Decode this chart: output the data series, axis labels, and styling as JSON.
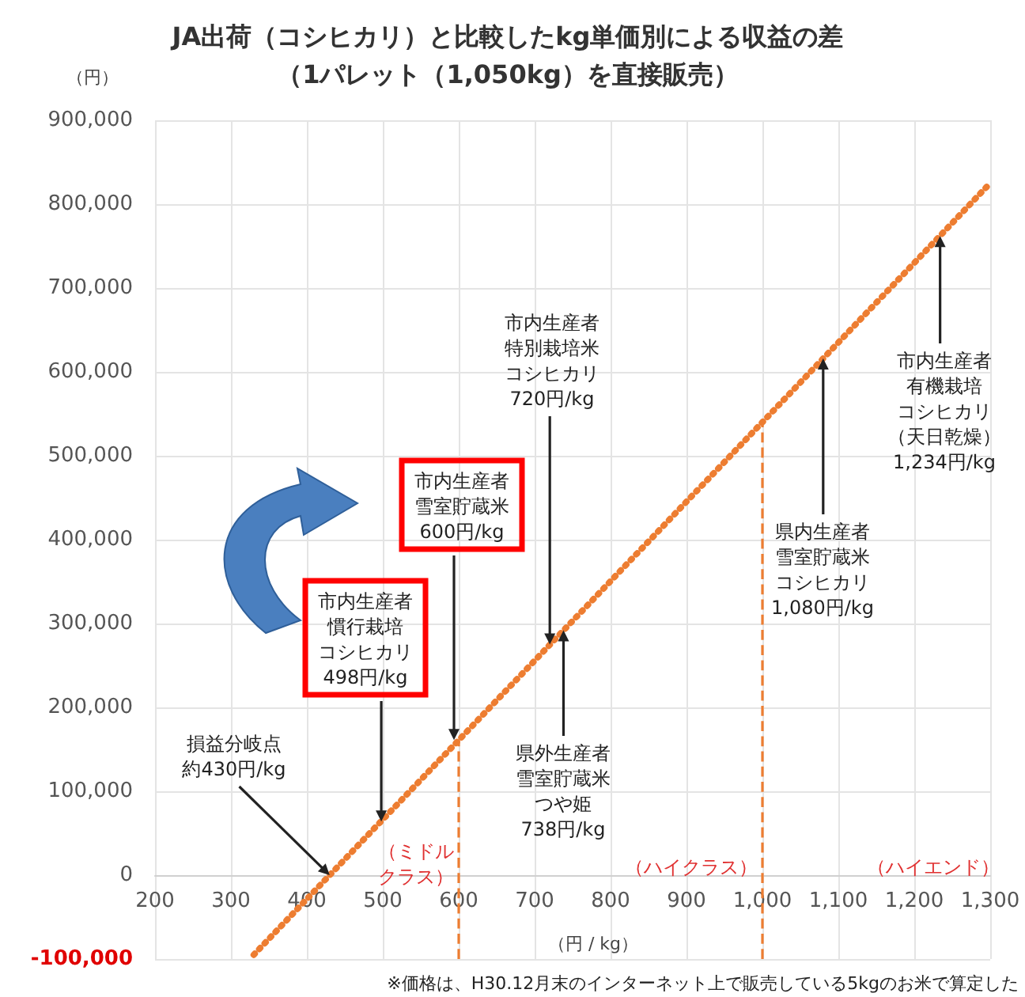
{
  "chart_data": {
    "type": "line",
    "title": "JA出荷（コシヒカリ）と比較したkg単価別による収益の差（1パレット（1,050kg）を直接販売）",
    "xlabel": "（円 / kg）",
    "ylabel": "（円）",
    "x": [
      330,
      430,
      600,
      1000,
      1300
    ],
    "series": [
      {
        "color": "#ed7d31",
        "values": [
          -95000,
          0,
          161000,
          540000,
          825000
        ]
      }
    ],
    "xlim": [
      200,
      1300
    ],
    "xticks": [
      200,
      300,
      400,
      500,
      600,
      700,
      800,
      900,
      {
        "value": 1000,
        "label": "1,000"
      },
      {
        "value": 1100,
        "label": "1,100"
      },
      {
        "value": 1200,
        "label": "1,200"
      },
      {
        "value": 1300,
        "label": "1,300"
      }
    ],
    "ylim": [
      -100000,
      900000
    ],
    "yticks": [
      {
        "value": -100000,
        "label": "-100,000"
      },
      0,
      {
        "value": 100000,
        "label": "100,000"
      },
      {
        "value": 200000,
        "label": "200,000"
      },
      {
        "value": 300000,
        "label": "300,000"
      },
      {
        "value": 400000,
        "label": "400,000"
      },
      {
        "value": 500000,
        "label": "500,000"
      },
      {
        "value": 600000,
        "label": "600,000"
      },
      {
        "value": 700000,
        "label": "700,000"
      },
      {
        "value": 800000,
        "label": "800,000"
      },
      {
        "value": 900000,
        "label": "900,000"
      }
    ],
    "grid": true,
    "marker": "none",
    "line_style": "dotted",
    "ref_lines": [
      {
        "axis": "x",
        "value": 600,
        "color": "#ed7d31",
        "line_style": "dashed"
      },
      {
        "axis": "x",
        "value": 1000,
        "color": "#ed7d31",
        "line_style": "dashed"
      }
    ],
    "annotations": [
      {
        "text": "損益分岐点約430円/kg",
        "x": 430,
        "y": 0
      },
      {
        "text": "市内生産者慣行栽培コシヒカリ498円/kg",
        "x": 498,
        "y": 64000
      },
      {
        "text": "市内生産者雪室貯蔵米600円/kg",
        "x": 600,
        "y": 161000
      },
      {
        "text": "市内生産者特別栽培米コシヒカリ720円/kg",
        "x": 720,
        "y": 275000
      },
      {
        "text": "県外生産者雪室貯蔵米つや姫738円/kg",
        "x": 738,
        "y": 292000
      },
      {
        "text": "県内生産者雪室貯蔵米コシヒカリ1,080円/kg",
        "x": 1080,
        "y": 616000
      },
      {
        "text": "市内生産者有機栽培コシヒカリ（天日乾燥）1,234円/kg",
        "x": 1234,
        "y": 762000
      },
      "（ミドルクラス）",
      "（ハイクラス）",
      "（ハイエンド）",
      "※価格は、H30.12月末のインターネット上で販売している5kgのお米で算定した"
    ]
  }
}
